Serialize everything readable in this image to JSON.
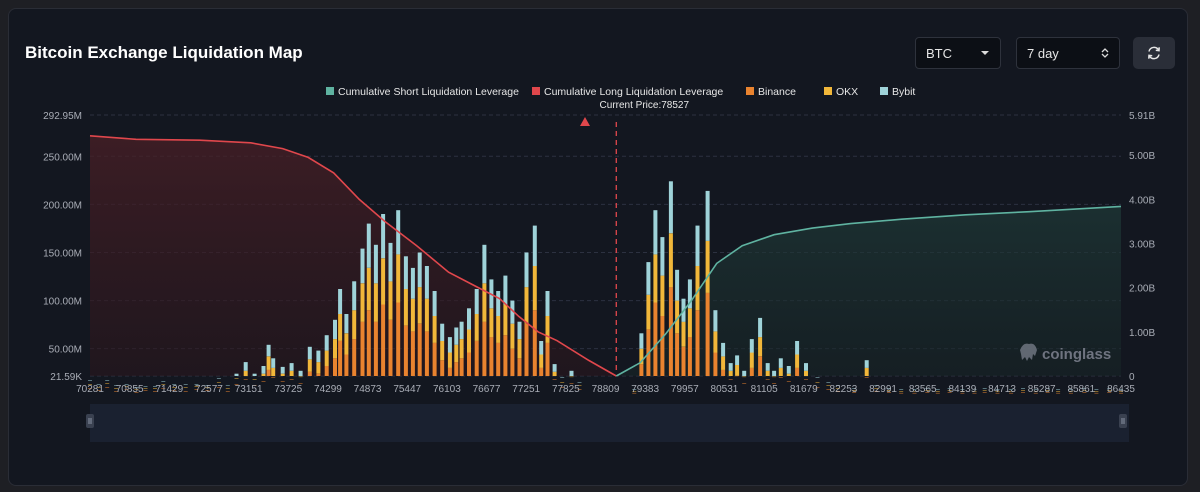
{
  "page": {
    "title": "Bitcoin Exchange Liquidation Map",
    "coin_select": "BTC",
    "range_select": "7 day",
    "refresh_icon": "refresh-icon",
    "watermark": "coinglass"
  },
  "colors": {
    "binance": "#e9832f",
    "okx": "#f1b73a",
    "bybit": "#9fd3d9",
    "cum_short": "#5fb3a1",
    "cum_long": "#e0474c",
    "current_price": "#e0474c"
  },
  "chart_data": {
    "type": "bar",
    "legend": [
      {
        "key": "cum_short",
        "label": "Cumulative Short Liquidation Leverage"
      },
      {
        "key": "cum_long",
        "label": "Cumulative Long Liquidation Leverage"
      },
      {
        "key": "binance",
        "label": "Binance"
      },
      {
        "key": "okx",
        "label": "OKX"
      },
      {
        "key": "bybit",
        "label": "Bybit"
      }
    ],
    "current_price": {
      "value": 78527,
      "label": "Current Price:78527"
    },
    "x_range": [
      70281,
      86435
    ],
    "x_ticks": [
      "70281",
      "70855",
      "71429",
      "72577",
      "73151",
      "73725",
      "74299",
      "74873",
      "75447",
      "76103",
      "76677",
      "77251",
      "77825",
      "78809",
      "79383",
      "79957",
      "80531",
      "81105",
      "81679",
      "82253",
      "82991",
      "83565",
      "84139",
      "84713",
      "85287",
      "85861",
      "86435"
    ],
    "y_left": {
      "range": [
        21.59,
        292.95
      ],
      "unit": "M",
      "ticks": [
        "21.59K",
        "50.00M",
        "100.00M",
        "150.00M",
        "200.00M",
        "250.00M",
        "292.95M"
      ]
    },
    "y_right": {
      "range": [
        0,
        5.91
      ],
      "unit": "B",
      "ticks": [
        "0",
        "1.00B",
        "2.00B",
        "3.00B",
        "4.00B",
        "5.00B",
        "5.91B"
      ]
    },
    "bars": [
      {
        "x": 70281,
        "binance": 9,
        "okx": 4,
        "bybit": 4
      },
      {
        "x": 70417,
        "binance": 7,
        "okx": 3,
        "bybit": 3
      },
      {
        "x": 70550,
        "binance": 10,
        "okx": 4,
        "bybit": 3
      },
      {
        "x": 70690,
        "binance": 6,
        "okx": 3,
        "bybit": 3
      },
      {
        "x": 70855,
        "binance": 8,
        "okx": 3,
        "bybit": 2
      },
      {
        "x": 71010,
        "binance": 5,
        "okx": 3,
        "bybit": 2
      },
      {
        "x": 71150,
        "binance": 7,
        "okx": 2,
        "bybit": 2
      },
      {
        "x": 71300,
        "binance": 6,
        "okx": 3,
        "bybit": 2
      },
      {
        "x": 71429,
        "binance": 9,
        "okx": 4,
        "bybit": 3
      },
      {
        "x": 71600,
        "binance": 7,
        "okx": 3,
        "bybit": 3
      },
      {
        "x": 71780,
        "binance": 6,
        "okx": 4,
        "bybit": 3
      },
      {
        "x": 71950,
        "binance": 8,
        "okx": 3,
        "bybit": 2
      },
      {
        "x": 72120,
        "binance": 7,
        "okx": 3,
        "bybit": 2
      },
      {
        "x": 72300,
        "binance": 10,
        "okx": 5,
        "bybit": 4
      },
      {
        "x": 72440,
        "binance": 6,
        "okx": 3,
        "bybit": 3
      },
      {
        "x": 72577,
        "binance": 13,
        "okx": 6,
        "bybit": 5
      },
      {
        "x": 72720,
        "binance": 18,
        "okx": 9,
        "bybit": 9
      },
      {
        "x": 72860,
        "binance": 12,
        "okx": 6,
        "bybit": 6
      },
      {
        "x": 73000,
        "binance": 16,
        "okx": 8,
        "bybit": 8
      },
      {
        "x": 73080,
        "binance": 28,
        "okx": 14,
        "bybit": 12
      },
      {
        "x": 73151,
        "binance": 20,
        "okx": 10,
        "bybit": 10
      },
      {
        "x": 73300,
        "binance": 16,
        "okx": 8,
        "bybit": 7
      },
      {
        "x": 73440,
        "binance": 18,
        "okx": 9,
        "bybit": 8
      },
      {
        "x": 73580,
        "binance": 14,
        "okx": 7,
        "bybit": 6
      },
      {
        "x": 73725,
        "binance": 26,
        "okx": 13,
        "bybit": 13
      },
      {
        "x": 73860,
        "binance": 24,
        "okx": 12,
        "bybit": 12
      },
      {
        "x": 73990,
        "binance": 32,
        "okx": 16,
        "bybit": 16
      },
      {
        "x": 74120,
        "binance": 40,
        "okx": 20,
        "bybit": 20
      },
      {
        "x": 74200,
        "binance": 58,
        "okx": 28,
        "bybit": 26
      },
      {
        "x": 74299,
        "binance": 44,
        "okx": 22,
        "bybit": 20
      },
      {
        "x": 74420,
        "binance": 60,
        "okx": 30,
        "bybit": 30
      },
      {
        "x": 74550,
        "binance": 78,
        "okx": 40,
        "bybit": 36
      },
      {
        "x": 74650,
        "binance": 90,
        "okx": 44,
        "bybit": 46
      },
      {
        "x": 74760,
        "binance": 78,
        "okx": 40,
        "bybit": 40
      },
      {
        "x": 74873,
        "binance": 96,
        "okx": 48,
        "bybit": 46
      },
      {
        "x": 74990,
        "binance": 80,
        "okx": 40,
        "bybit": 40
      },
      {
        "x": 75110,
        "binance": 98,
        "okx": 50,
        "bybit": 46
      },
      {
        "x": 75230,
        "binance": 74,
        "okx": 38,
        "bybit": 34
      },
      {
        "x": 75340,
        "binance": 68,
        "okx": 34,
        "bybit": 32
      },
      {
        "x": 75447,
        "binance": 76,
        "okx": 38,
        "bybit": 36
      },
      {
        "x": 75560,
        "binance": 68,
        "okx": 34,
        "bybit": 34
      },
      {
        "x": 75680,
        "binance": 56,
        "okx": 28,
        "bybit": 26
      },
      {
        "x": 75800,
        "binance": 38,
        "okx": 20,
        "bybit": 18
      },
      {
        "x": 75920,
        "binance": 30,
        "okx": 16,
        "bybit": 16
      },
      {
        "x": 76020,
        "binance": 36,
        "okx": 18,
        "bybit": 18
      },
      {
        "x": 76103,
        "binance": 40,
        "okx": 20,
        "bybit": 18
      },
      {
        "x": 76220,
        "binance": 46,
        "okx": 24,
        "bybit": 22
      },
      {
        "x": 76340,
        "binance": 58,
        "okx": 28,
        "bybit": 26
      },
      {
        "x": 76460,
        "binance": 78,
        "okx": 40,
        "bybit": 40
      },
      {
        "x": 76570,
        "binance": 62,
        "okx": 30,
        "bybit": 30
      },
      {
        "x": 76677,
        "binance": 56,
        "okx": 28,
        "bybit": 26
      },
      {
        "x": 76790,
        "binance": 64,
        "okx": 32,
        "bybit": 30
      },
      {
        "x": 76900,
        "binance": 50,
        "okx": 26,
        "bybit": 24
      },
      {
        "x": 77010,
        "binance": 40,
        "okx": 20,
        "bybit": 18
      },
      {
        "x": 77120,
        "binance": 76,
        "okx": 38,
        "bybit": 36
      },
      {
        "x": 77251,
        "binance": 90,
        "okx": 46,
        "bybit": 42
      },
      {
        "x": 77350,
        "binance": 30,
        "okx": 14,
        "bybit": 14
      },
      {
        "x": 77450,
        "binance": 56,
        "okx": 28,
        "bybit": 26
      },
      {
        "x": 77560,
        "binance": 18,
        "okx": 8,
        "bybit": 8
      },
      {
        "x": 77680,
        "binance": 10,
        "okx": 5,
        "bybit": 5
      },
      {
        "x": 77825,
        "binance": 14,
        "okx": 7,
        "bybit": 6
      },
      {
        "x": 77950,
        "binance": 8,
        "okx": 4,
        "bybit": 3
      },
      {
        "x": 78809,
        "binance": 4,
        "okx": 2,
        "bybit": 2
      },
      {
        "x": 78920,
        "binance": 34,
        "okx": 16,
        "bybit": 16
      },
      {
        "x": 79030,
        "binance": 70,
        "okx": 36,
        "bybit": 34
      },
      {
        "x": 79140,
        "binance": 98,
        "okx": 50,
        "bybit": 46
      },
      {
        "x": 79250,
        "binance": 84,
        "okx": 42,
        "bybit": 40
      },
      {
        "x": 79383,
        "binance": 114,
        "okx": 56,
        "bybit": 54
      },
      {
        "x": 79480,
        "binance": 66,
        "okx": 34,
        "bybit": 32
      },
      {
        "x": 79580,
        "binance": 52,
        "okx": 26,
        "bybit": 24
      },
      {
        "x": 79680,
        "binance": 62,
        "okx": 30,
        "bybit": 30
      },
      {
        "x": 79800,
        "binance": 90,
        "okx": 46,
        "bybit": 42
      },
      {
        "x": 79957,
        "binance": 108,
        "okx": 54,
        "bybit": 52
      },
      {
        "x": 80080,
        "binance": 46,
        "okx": 22,
        "bybit": 22
      },
      {
        "x": 80200,
        "binance": 28,
        "okx": 14,
        "bybit": 14
      },
      {
        "x": 80320,
        "binance": 18,
        "okx": 9,
        "bybit": 8
      },
      {
        "x": 80420,
        "binance": 22,
        "okx": 11,
        "bybit": 10
      },
      {
        "x": 80531,
        "binance": 14,
        "okx": 7,
        "bybit": 6
      },
      {
        "x": 80650,
        "binance": 30,
        "okx": 16,
        "bybit": 14
      },
      {
        "x": 80780,
        "binance": 42,
        "okx": 20,
        "bybit": 20
      },
      {
        "x": 80900,
        "binance": 18,
        "okx": 9,
        "bybit": 8
      },
      {
        "x": 81000,
        "binance": 14,
        "okx": 7,
        "bybit": 6
      },
      {
        "x": 81105,
        "binance": 20,
        "okx": 10,
        "bybit": 10
      },
      {
        "x": 81230,
        "binance": 16,
        "okx": 8,
        "bybit": 8
      },
      {
        "x": 81360,
        "binance": 30,
        "okx": 14,
        "bybit": 14
      },
      {
        "x": 81500,
        "binance": 18,
        "okx": 9,
        "bybit": 8
      },
      {
        "x": 81679,
        "binance": 10,
        "okx": 5,
        "bybit": 5
      },
      {
        "x": 81850,
        "binance": 8,
        "okx": 4,
        "bybit": 3
      },
      {
        "x": 82000,
        "binance": 6,
        "okx": 3,
        "bybit": 3
      },
      {
        "x": 82253,
        "binance": 5,
        "okx": 2,
        "bybit": 2
      },
      {
        "x": 82450,
        "binance": 20,
        "okx": 10,
        "bybit": 8
      },
      {
        "x": 82600,
        "binance": 6,
        "okx": 3,
        "bybit": 3
      },
      {
        "x": 82800,
        "binance": 5,
        "okx": 2,
        "bybit": 2
      },
      {
        "x": 82991,
        "binance": 4,
        "okx": 2,
        "bybit": 2
      },
      {
        "x": 83200,
        "binance": 4,
        "okx": 2,
        "bybit": 2
      },
      {
        "x": 83400,
        "binance": 5,
        "okx": 2,
        "bybit": 2
      },
      {
        "x": 83565,
        "binance": 4,
        "okx": 2,
        "bybit": 2
      },
      {
        "x": 83750,
        "binance": 5,
        "okx": 2,
        "bybit": 2
      },
      {
        "x": 83950,
        "binance": 4,
        "okx": 2,
        "bybit": 2
      },
      {
        "x": 84139,
        "binance": 4,
        "okx": 2,
        "bybit": 2
      },
      {
        "x": 84300,
        "binance": 5,
        "okx": 2,
        "bybit": 2
      },
      {
        "x": 84500,
        "binance": 4,
        "okx": 2,
        "bybit": 2
      },
      {
        "x": 84713,
        "binance": 4,
        "okx": 2,
        "bybit": 2
      },
      {
        "x": 84900,
        "binance": 5,
        "okx": 2,
        "bybit": 2
      },
      {
        "x": 85100,
        "binance": 4,
        "okx": 2,
        "bybit": 2
      },
      {
        "x": 85287,
        "binance": 5,
        "okx": 2,
        "bybit": 2
      },
      {
        "x": 85450,
        "binance": 4,
        "okx": 2,
        "bybit": 2
      },
      {
        "x": 85650,
        "binance": 4,
        "okx": 2,
        "bybit": 2
      },
      {
        "x": 85861,
        "binance": 5,
        "okx": 2,
        "bybit": 2
      },
      {
        "x": 86050,
        "binance": 4,
        "okx": 2,
        "bybit": 2
      },
      {
        "x": 86250,
        "binance": 5,
        "okx": 2,
        "bybit": 2
      },
      {
        "x": 86435,
        "binance": 4,
        "okx": 2,
        "bybit": 2
      }
    ],
    "cum_long_points": [
      [
        70281,
        5.44
      ],
      [
        71000,
        5.36
      ],
      [
        72000,
        5.34
      ],
      [
        72800,
        5.28
      ],
      [
        73300,
        5.15
      ],
      [
        73700,
        4.95
      ],
      [
        74100,
        4.6
      ],
      [
        74500,
        4.0
      ],
      [
        74900,
        3.5
      ],
      [
        75400,
        2.95
      ],
      [
        75900,
        2.35
      ],
      [
        76300,
        2.05
      ],
      [
        76700,
        1.75
      ],
      [
        77000,
        1.35
      ],
      [
        77300,
        1.0
      ],
      [
        77600,
        0.8
      ],
      [
        78100,
        0.35
      ],
      [
        78527,
        0.0
      ]
    ],
    "cum_short_points": [
      [
        78527,
        0.0
      ],
      [
        78900,
        0.3
      ],
      [
        79300,
        0.95
      ],
      [
        79700,
        1.7
      ],
      [
        80100,
        2.55
      ],
      [
        80500,
        2.95
      ],
      [
        81000,
        3.2
      ],
      [
        81600,
        3.35
      ],
      [
        82200,
        3.45
      ],
      [
        83000,
        3.55
      ],
      [
        84000,
        3.65
      ],
      [
        85000,
        3.72
      ],
      [
        86435,
        3.84
      ]
    ]
  }
}
